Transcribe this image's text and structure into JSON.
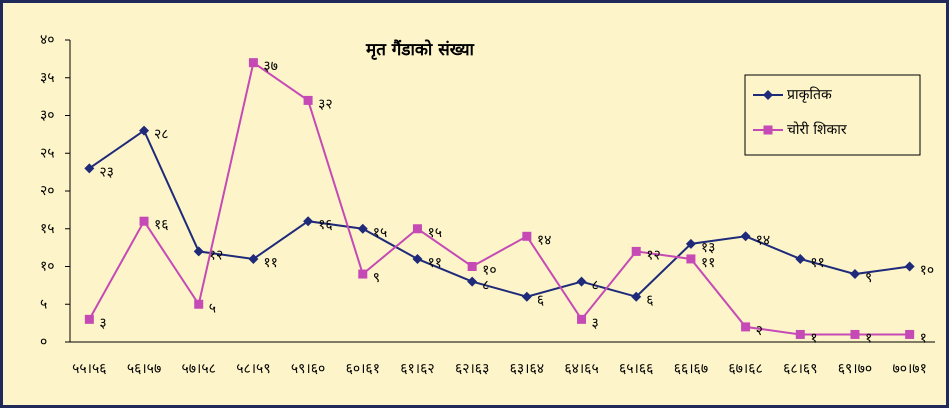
{
  "chart_data": {
    "type": "line",
    "title": "मृत गैंडाको संख्या",
    "categories": [
      "५५।५६",
      "५६।५७",
      "५७।५८",
      "५८।५९",
      "५९।६०",
      "६०।६१",
      "६१।६२",
      "६२।६३",
      "६३।६४",
      "६४।६५",
      "६५।६६",
      "६६।६७",
      "६७।६८",
      "६८।६९",
      "६९।७०",
      "७०।७१"
    ],
    "series": [
      {
        "name": "प्राकृतिक",
        "color": "#1f2a7a",
        "marker": "diamond",
        "values": [
          23,
          28,
          12,
          11,
          16,
          15,
          11,
          8,
          6,
          8,
          6,
          13,
          14,
          11,
          9,
          10
        ],
        "value_labels": [
          "२३",
          "२८",
          "१२",
          "११",
          "१६",
          "१५",
          "११",
          "८",
          "६",
          "८",
          "६",
          "१३",
          "१४",
          "११",
          "९",
          "१०"
        ]
      },
      {
        "name": "चोरी शिकार",
        "color": "#c54ab5",
        "marker": "square",
        "values": [
          3,
          16,
          5,
          37,
          32,
          9,
          15,
          10,
          14,
          3,
          12,
          11,
          2,
          1,
          1,
          1
        ],
        "value_labels": [
          "३",
          "१६",
          "५",
          "३७",
          "३२",
          "९",
          "१५",
          "१०",
          "१४",
          "३",
          "१२",
          "११",
          "२",
          "१",
          "१",
          "१"
        ]
      }
    ],
    "ylim": [
      0,
      40
    ],
    "yticks": [
      {
        "value": 0,
        "label": "०"
      },
      {
        "value": 5,
        "label": "५"
      },
      {
        "value": 10,
        "label": "१०"
      },
      {
        "value": 15,
        "label": "१५"
      },
      {
        "value": 20,
        "label": "२०"
      },
      {
        "value": 25,
        "label": "२५"
      },
      {
        "value": 30,
        "label": "३०"
      },
      {
        "value": 35,
        "label": "३५"
      },
      {
        "value": 40,
        "label": "४०"
      }
    ],
    "grid": false,
    "legend": "upper right"
  }
}
